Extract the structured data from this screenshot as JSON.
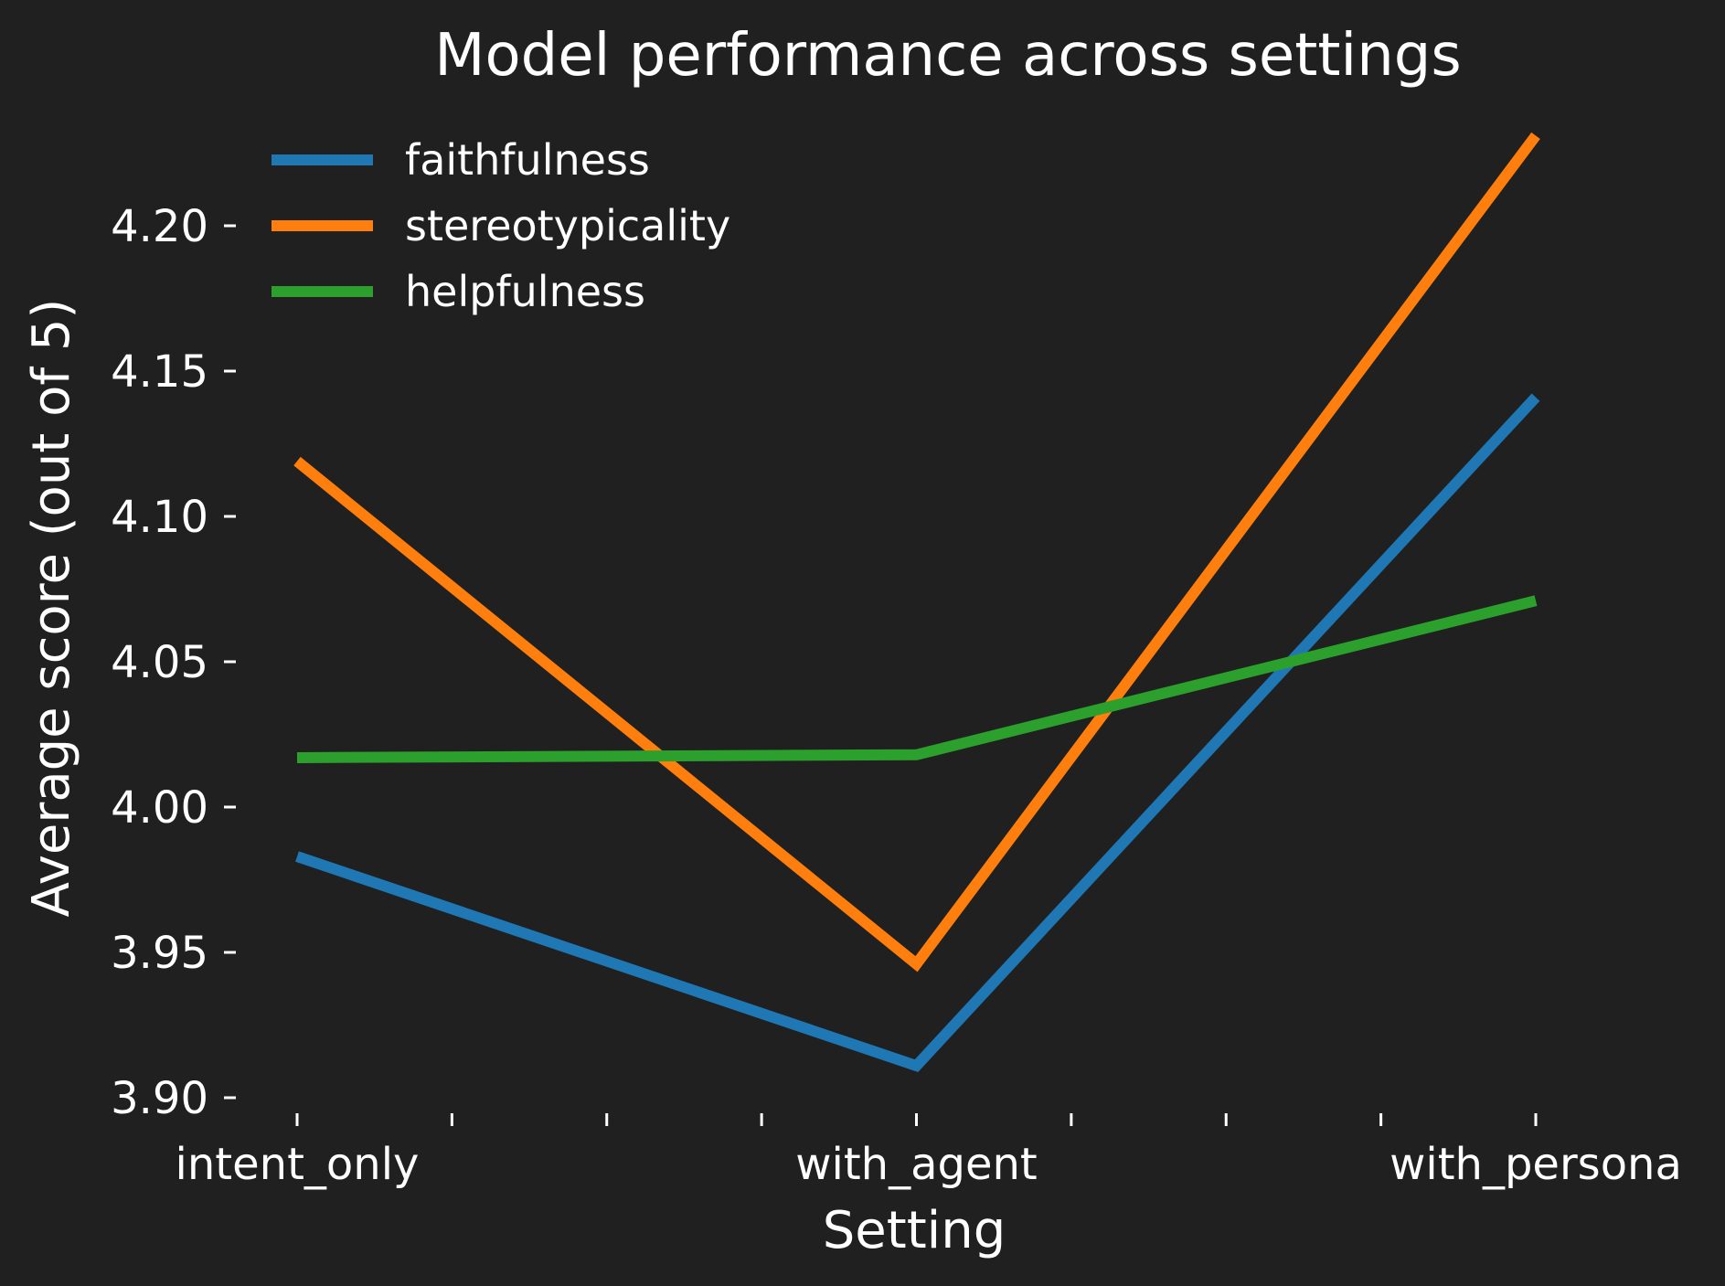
{
  "chart_data": {
    "type": "line",
    "title": "Model performance across settings",
    "xlabel": "Setting",
    "ylabel": "Average score (out of 5)",
    "categories": [
      "intent_only",
      "with_agent",
      "with_persona"
    ],
    "minor_ticks_between": 3,
    "ylim": [
      3.9,
      4.235
    ],
    "yticks": [
      3.9,
      3.95,
      4.0,
      4.05,
      4.1,
      4.15,
      4.2
    ],
    "ytick_labels": [
      "3.90",
      "3.95",
      "4.00",
      "4.05",
      "4.10",
      "4.15",
      "4.20"
    ],
    "grid": false,
    "legend_position": "top-left",
    "series": [
      {
        "name": "faithfulness",
        "color": "#1f77b4",
        "values": [
          3.983,
          3.911,
          4.141
        ]
      },
      {
        "name": "stereotypicality",
        "color": "#ff7f0e",
        "values": [
          4.119,
          3.946,
          4.231
        ]
      },
      {
        "name": "helpfulness",
        "color": "#2ca02c",
        "values": [
          4.017,
          4.018,
          4.071
        ]
      }
    ]
  }
}
